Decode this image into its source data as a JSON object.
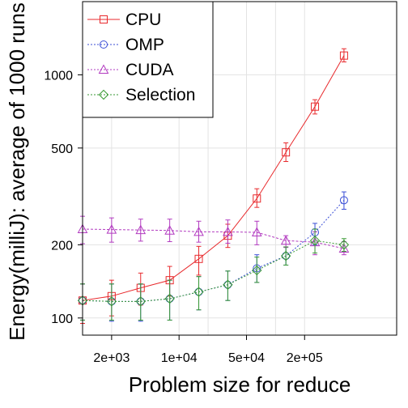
{
  "chart_data": {
    "type": "line",
    "title": "",
    "xlabel": "Problem size for reduce",
    "ylabel": "Energy(milliJ): average of 1000 runs",
    "x_scale": "log",
    "y_scale": "log",
    "xlim": [
      1000,
      1800000
    ],
    "ylim": [
      85,
      2000
    ],
    "x_ticks": [
      2000,
      10000,
      50000,
      200000
    ],
    "x_tick_labels": [
      "2e+03",
      "1e+04",
      "5e+04",
      "2e+05"
    ],
    "y_ticks": [
      100,
      200,
      500,
      1000
    ],
    "y_tick_labels": [
      "100",
      "200",
      "500",
      "1000"
    ],
    "grid": true,
    "legend_position": "top-left",
    "x": [
      1000,
      2000,
      4000,
      8000,
      16000,
      32000,
      64000,
      128000,
      256000,
      512000,
      1024000
    ],
    "series": [
      {
        "name": "CPU",
        "marker": "square",
        "color": "#e8292c",
        "values": [
          118,
          123,
          133,
          143,
          175,
          218,
          310,
          480,
          740,
          1200,
          null
        ],
        "err_low": [
          95,
          102,
          113,
          123,
          150,
          195,
          285,
          440,
          690,
          1130,
          null
        ],
        "err_high": [
          138,
          143,
          153,
          163,
          197,
          243,
          340,
          525,
          790,
          1280,
          null
        ]
      },
      {
        "name": "OMP",
        "marker": "circle",
        "color": "#3a4ed6",
        "values": [
          118,
          117,
          117,
          120,
          128,
          137,
          160,
          180,
          225,
          305,
          null
        ],
        "err_low": [
          98,
          97,
          97,
          98,
          108,
          118,
          140,
          165,
          200,
          280,
          null
        ],
        "err_high": [
          138,
          138,
          138,
          143,
          148,
          156,
          182,
          196,
          245,
          330,
          null
        ]
      },
      {
        "name": "CUDA",
        "marker": "triangle",
        "color": "#b23bc0",
        "values": [
          232,
          231,
          230,
          229,
          226,
          226,
          225,
          208,
          205,
          193,
          null
        ],
        "err_low": [
          202,
          205,
          207,
          206,
          205,
          203,
          200,
          195,
          182,
          182,
          null
        ],
        "err_high": [
          262,
          258,
          255,
          255,
          250,
          253,
          250,
          218,
          226,
          206,
          null
        ]
      },
      {
        "name": "Selection",
        "marker": "diamond",
        "color": "#3a9a34",
        "values": [
          118,
          117,
          117,
          120,
          128,
          137,
          157,
          180,
          208,
          200,
          null
        ],
        "err_low": [
          98,
          98,
          98,
          98,
          108,
          118,
          140,
          165,
          185,
          188,
          null
        ],
        "err_high": [
          138,
          138,
          138,
          143,
          148,
          156,
          178,
          196,
          232,
          212,
          null
        ]
      }
    ]
  }
}
